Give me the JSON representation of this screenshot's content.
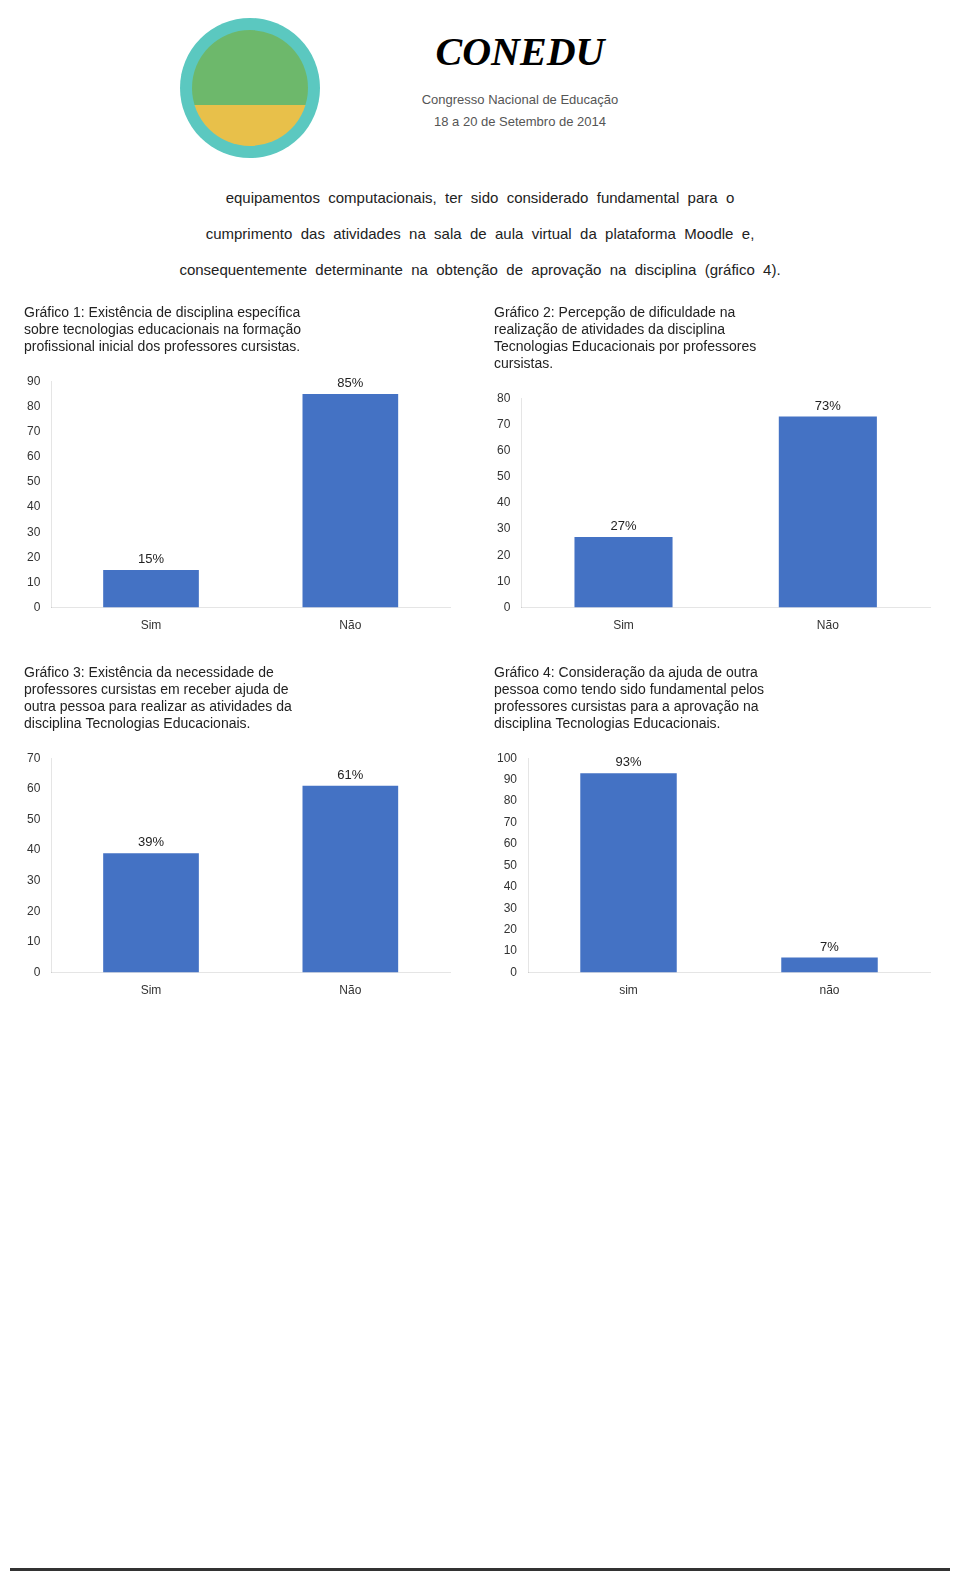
{
  "title": "CONEDU",
  "subtitle": [
    "Congresso Nacional de Educação",
    "18 a 20 de Setembro de 2014"
  ],
  "annotations": [
    "equipamentos  computacionais,  ter  sido  considerado  fundamental  para  o",
    "cumprimento  das  atividades  na  sala  de  aula  virtual  da  plataforma  Moodle  e,",
    "consequentemente  determinante  na  obtenção  de  aprovação  na  disciplina  (gráfico  4)."
  ],
  "chart_data": [
    {
      "type": "bar",
      "title": [
        "Gráfico 1: Existência de disciplina específica",
        "sobre tecnologias educacionais na formação",
        "profissional inicial dos professores cursistas."
      ],
      "categories": [
        "Sim",
        "Não"
      ],
      "values": [
        15,
        85
      ],
      "value_labels": [
        "15%",
        "85%"
      ],
      "data_labels": true,
      "color": "#4472C4",
      "ylim": [
        0,
        90
      ],
      "yticks": [
        0,
        10,
        20,
        30,
        40,
        50,
        60,
        70,
        80,
        90
      ],
      "grid": false
    },
    {
      "type": "bar",
      "title": [
        "Gráfico 2: Percepção de dificuldade na",
        "realização de atividades da disciplina",
        "Tecnologias Educacionais por professores",
        "cursistas."
      ],
      "categories": [
        "Sim",
        "Não"
      ],
      "values": [
        27,
        73
      ],
      "value_labels": [
        "27%",
        "73%"
      ],
      "data_labels": true,
      "color": "#4472C4",
      "ylim": [
        0,
        80
      ],
      "yticks": [
        0,
        10,
        20,
        30,
        40,
        50,
        60,
        70,
        80
      ],
      "grid": false
    },
    {
      "type": "bar",
      "title": [
        "Gráfico 3: Existência da necessidade de",
        "professores cursistas em receber ajuda de",
        "outra pessoa para realizar as atividades da",
        "disciplina Tecnologias Educacionais."
      ],
      "categories": [
        "Sim",
        "Não"
      ],
      "values": [
        39,
        61
      ],
      "value_labels": [
        "39%",
        "61%"
      ],
      "data_labels": true,
      "color": "#4472C4",
      "ylim": [
        0,
        70
      ],
      "yticks": [
        0,
        10,
        20,
        30,
        40,
        50,
        60,
        70
      ],
      "grid": false
    },
    {
      "type": "bar",
      "title": [
        "Gráfico 4: Consideração da ajuda de outra",
        "pessoa como tendo sido fundamental pelos",
        "professores cursistas para a aprovação na",
        "disciplina Tecnologias Educacionais."
      ],
      "categories": [
        "sim",
        "não"
      ],
      "values": [
        93,
        7
      ],
      "value_labels": [
        "93%",
        "7%"
      ],
      "data_labels": true,
      "color": "#4472C4",
      "ylim": [
        0,
        100
      ],
      "yticks": [
        0,
        10,
        20,
        30,
        40,
        50,
        60,
        70,
        80,
        90,
        100
      ],
      "grid": false
    }
  ]
}
